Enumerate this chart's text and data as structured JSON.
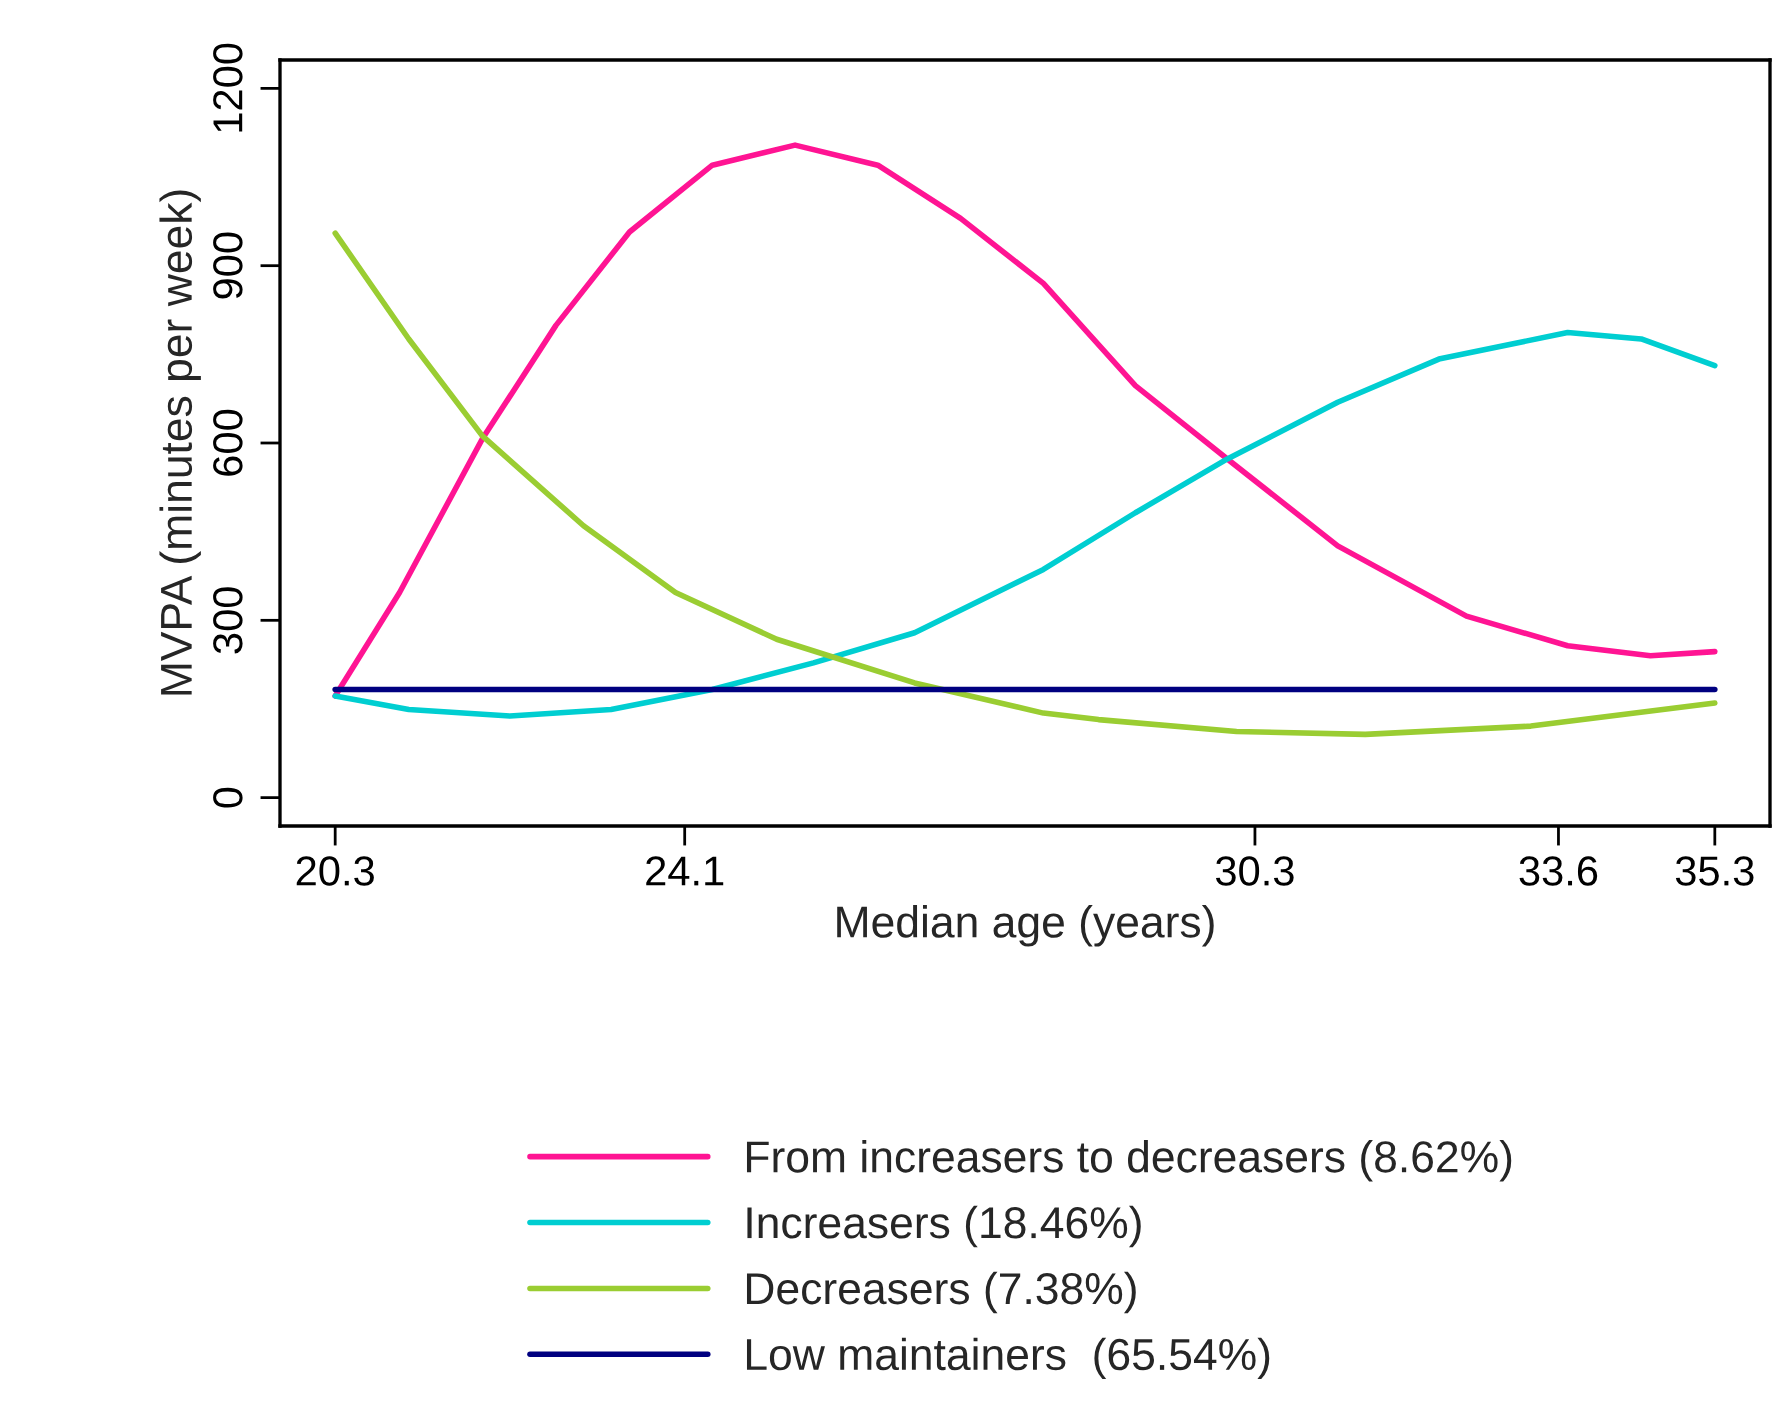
{
  "chart_data": {
    "type": "line",
    "xlabel": "Median age (years)",
    "ylabel": "MVPA (minutes per week)",
    "xlim": [
      19.7,
      35.9
    ],
    "ylim": [
      -48,
      1248
    ],
    "xticks": [
      20.3,
      24.1,
      30.3,
      33.6,
      35.3
    ],
    "yticks": [
      0,
      300,
      600,
      900,
      1200
    ],
    "grid": false,
    "legend": "bottom",
    "marker": "none",
    "line_style": "solid",
    "series": [
      {
        "name": "From increasers to decreasers (8.62%)",
        "color": "#ff1493",
        "x": [
          20.3,
          21.0,
          21.9,
          22.7,
          23.5,
          24.4,
          25.3,
          26.2,
          27.1,
          28.0,
          29.0,
          30.0,
          31.2,
          32.6,
          33.7,
          34.6,
          35.3
        ],
        "values": [
          172,
          347,
          607,
          799,
          957,
          1070,
          1104,
          1070,
          980,
          870,
          697,
          573,
          426,
          307,
          257,
          240,
          247
        ]
      },
      {
        "name": "Increasers (18.46%)",
        "color": "#00ced1",
        "x": [
          20.3,
          21.1,
          22.2,
          23.3,
          24.4,
          25.5,
          26.6,
          28.0,
          29.0,
          30.0,
          31.2,
          32.3,
          33.7,
          34.5,
          35.3
        ],
        "values": [
          172,
          149,
          138,
          149,
          183,
          228,
          279,
          386,
          482,
          573,
          669,
          742,
          787,
          776,
          731
        ]
      },
      {
        "name": "Decreasers (7.38%)",
        "color": "#9acd32",
        "x": [
          20.3,
          21.1,
          21.9,
          23.0,
          24.0,
          25.1,
          26.6,
          28.0,
          28.6,
          30.1,
          31.5,
          33.3,
          35.3
        ],
        "values": [
          955,
          776,
          612,
          460,
          347,
          268,
          194,
          143,
          132,
          112,
          107,
          121,
          160
        ]
      },
      {
        "name": "Low maintainers  (65.54%)",
        "color": "#000080",
        "x": [
          20.3,
          35.3
        ],
        "values": [
          183,
          183
        ]
      }
    ]
  }
}
